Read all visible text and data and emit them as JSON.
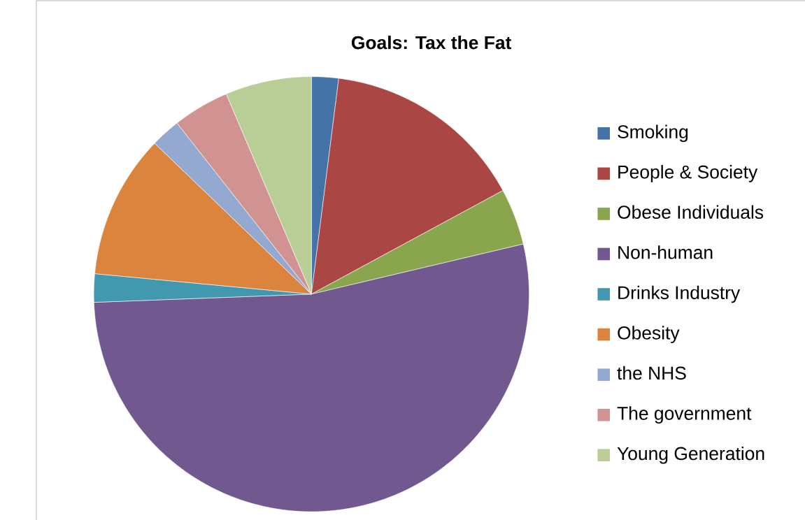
{
  "chart_data": {
    "type": "pie",
    "title": "Goals: Tax the Fat",
    "categories": [
      "Smoking",
      "People & Society",
      "Obese Individuals",
      "Non-human",
      "Drinks Industry",
      "Obesity",
      "the NHS",
      "The government",
      "Young Generation"
    ],
    "values": [
      2.0,
      15.1,
      4.2,
      53.1,
      2.1,
      10.7,
      2.2,
      4.2,
      6.4
    ],
    "colors": [
      "#4572a7",
      "#aa4643",
      "#89a54e",
      "#71588f",
      "#4198af",
      "#db843d",
      "#93a9cf",
      "#d19392",
      "#b9cd96"
    ],
    "legend": "right"
  }
}
